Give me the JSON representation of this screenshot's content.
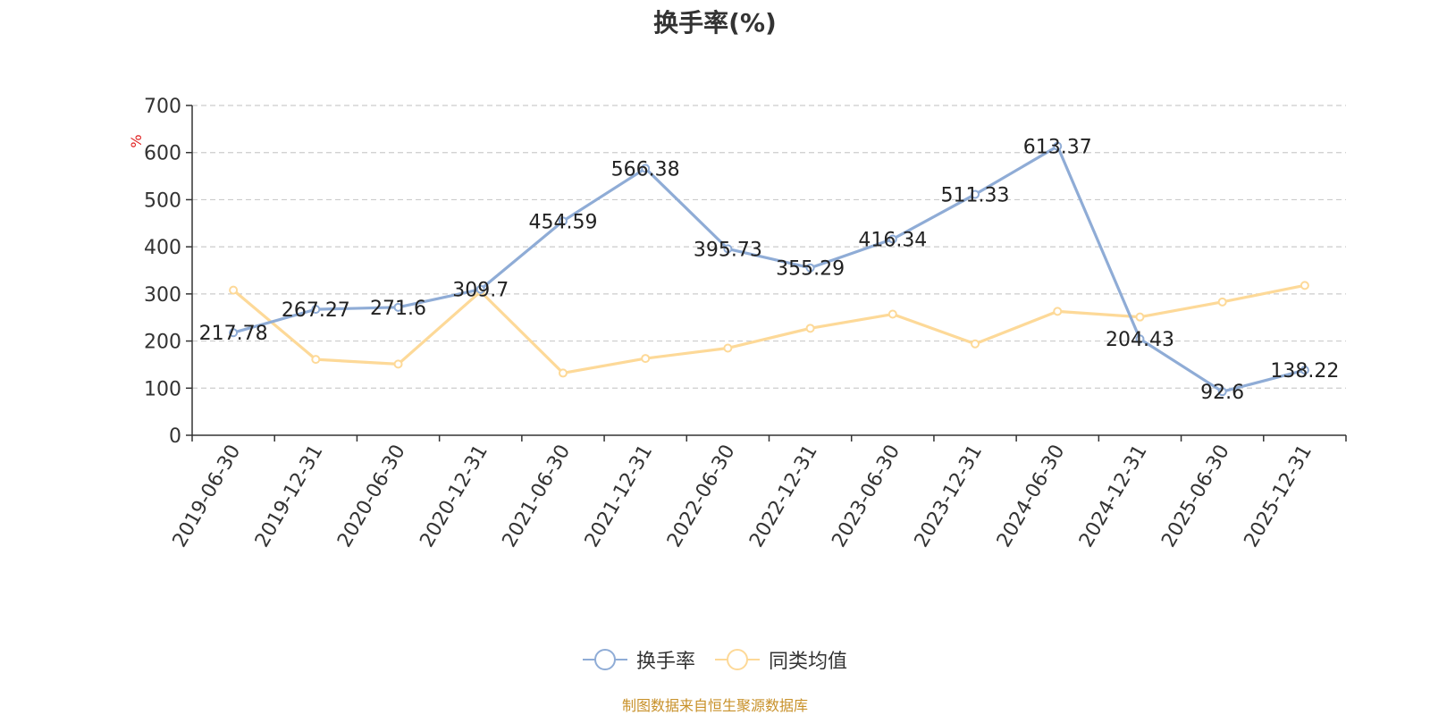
{
  "chart_data": {
    "type": "line",
    "title": "换手率(%)",
    "ylabel": "%",
    "xlabel": "",
    "ylim": [
      0,
      700
    ],
    "yticks": [
      0,
      100,
      200,
      300,
      400,
      500,
      600,
      700
    ],
    "grid": true,
    "legend_position": "bottom",
    "categories": [
      "2019-06-30",
      "2019-12-31",
      "2020-06-30",
      "2020-12-31",
      "2021-06-30",
      "2021-12-31",
      "2022-06-30",
      "2022-12-31",
      "2023-06-30",
      "2023-12-31",
      "2024-06-30",
      "2024-12-31",
      "2025-06-30",
      "2025-12-31"
    ],
    "series": [
      {
        "name": "换手率",
        "color": "#8facd6",
        "values": [
          217.78,
          267.27,
          271.6,
          309.7,
          454.59,
          566.38,
          395.73,
          355.29,
          416.34,
          511.33,
          613.37,
          204.43,
          92.6,
          138.22
        ],
        "labels": [
          "217.78",
          "267.27",
          "271.6",
          "309.7",
          "454.59",
          "566.38",
          "395.73",
          "355.29",
          "416.34",
          "511.33",
          "613.37",
          "204.43",
          "92.6",
          "138.22"
        ]
      },
      {
        "name": "同类均值",
        "color": "#fdd998",
        "values": [
          308,
          161,
          151,
          305,
          132,
          163,
          185,
          227,
          257,
          194,
          263,
          251,
          283,
          318
        ]
      }
    ]
  },
  "source_note": "制图数据来自恒生聚源数据库"
}
